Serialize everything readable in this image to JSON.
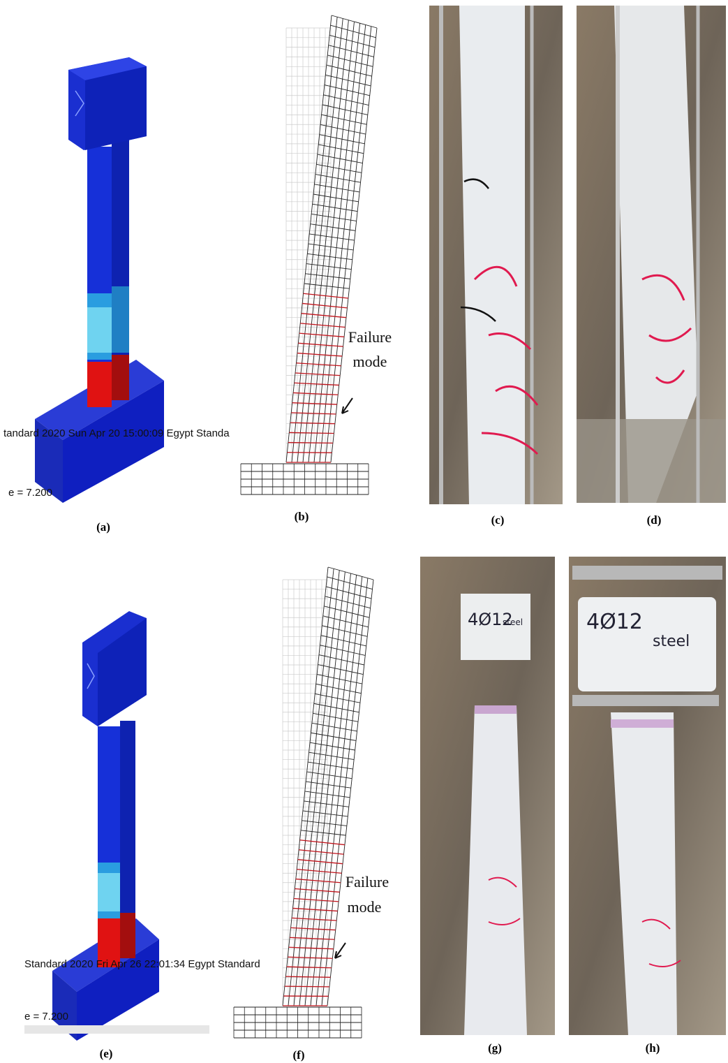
{
  "panels": [
    {
      "label": "(a)",
      "overlay": [
        "tandard 2020   Sun Apr 20 15:00:09 Egypt Standa",
        "e =   7.200"
      ]
    },
    {
      "label": "(b)",
      "annotation": [
        "Failure",
        "mode"
      ]
    },
    {
      "label": "(c)"
    },
    {
      "label": "(d)"
    },
    {
      "label": "(e)",
      "overlay": [
        "Standard 2020   Fri Apr 26 22:01:34 Egypt Standard",
        "e =   7.200"
      ]
    },
    {
      "label": "(f)",
      "annotation": [
        "Failure",
        "mode"
      ]
    },
    {
      "label": "(g)",
      "note": [
        "4Ø12",
        "steel"
      ]
    },
    {
      "label": "(h)",
      "note": [
        "4Ø12",
        "steel"
      ]
    }
  ]
}
